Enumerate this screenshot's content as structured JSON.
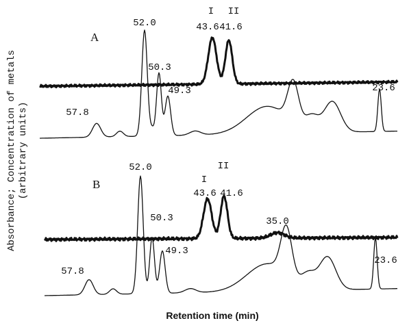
{
  "chart_data": {
    "type": "chromatogram",
    "ylabel": [
      "Absorbance; Concentration of metals",
      "(arbitrary units)"
    ],
    "xlabel": "Retention time (min)",
    "panels": [
      {
        "label": "A",
        "annotations": [
          "I",
          "II",
          "43.6",
          "41.6",
          "52.0",
          "50.3",
          "49.3",
          "57.8",
          "23.6"
        ]
      },
      {
        "label": "B",
        "annotations": [
          "I",
          "II",
          "43.6",
          "41.6",
          "52.0",
          "50.3",
          "49.3",
          "57.8",
          "23.6",
          "35.0"
        ]
      }
    ]
  }
}
